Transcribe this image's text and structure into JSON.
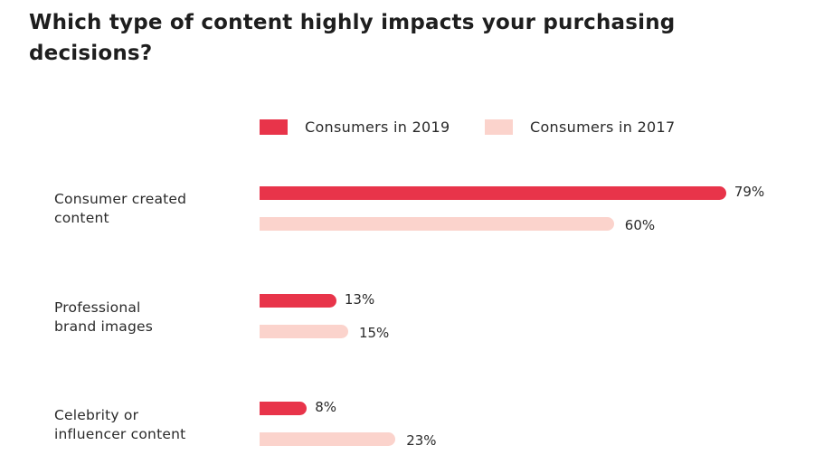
{
  "chart_data": {
    "type": "bar",
    "orientation": "horizontal",
    "title": "Which type of content highly impacts your purchasing decisions?",
    "xlabel": "",
    "ylabel": "",
    "xlim": [
      0,
      100
    ],
    "grid": false,
    "legend_position": "top",
    "categories": [
      [
        "Consumer created",
        "content"
      ],
      [
        "Professional",
        "brand images"
      ],
      [
        "Celebrity or",
        "influencer content"
      ]
    ],
    "series": [
      {
        "name": "Consumers in 2019",
        "color": "#e8344a",
        "values": [
          79,
          13,
          8
        ],
        "labels": [
          "79%",
          "13%",
          "8%"
        ]
      },
      {
        "name": "Consumers in 2017",
        "color": "#fbd3cc",
        "values": [
          60,
          15,
          23
        ],
        "labels": [
          "60%",
          "15%",
          "23%"
        ]
      }
    ]
  }
}
